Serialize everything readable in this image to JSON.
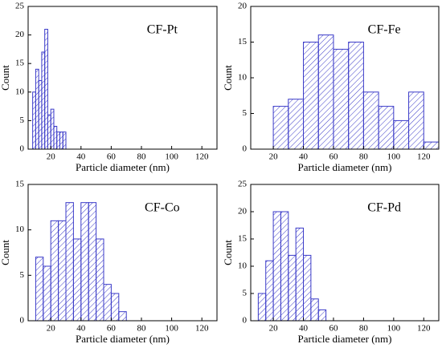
{
  "chart_data": [
    {
      "type": "histogram",
      "annotation": "CF-Pt",
      "xlabel": "Particle diameter (nm)",
      "ylabel": "Count",
      "color": "#3a3ac8",
      "bins": [
        8,
        10,
        12,
        14,
        16,
        18,
        20,
        22,
        24,
        26,
        28,
        30
      ],
      "counts": [
        10,
        14,
        12,
        17,
        21,
        6,
        7,
        4,
        3,
        3,
        3
      ],
      "xlim": [
        5,
        130
      ],
      "xticks": [
        20,
        40,
        60,
        80,
        100,
        120
      ],
      "ylim": [
        0,
        25
      ],
      "yticks": [
        0,
        5,
        10,
        15,
        20,
        25
      ]
    },
    {
      "type": "histogram",
      "annotation": "CF-Fe",
      "xlabel": "Particle diameter (nm)",
      "ylabel": "Count",
      "color": "#3a3ac8",
      "bins": [
        20,
        30,
        40,
        50,
        60,
        70,
        80,
        90,
        100,
        110,
        120,
        130
      ],
      "counts": [
        6,
        7,
        15,
        16,
        14,
        15,
        8,
        6,
        4,
        8,
        1
      ],
      "xlim": [
        5,
        130
      ],
      "xticks": [
        20,
        40,
        60,
        80,
        100,
        120
      ],
      "ylim": [
        0,
        20
      ],
      "yticks": [
        0,
        5,
        10,
        15,
        20
      ]
    },
    {
      "type": "histogram",
      "annotation": "CF-Co",
      "xlabel": "Particle diameter (nm)",
      "ylabel": "Count",
      "color": "#3a3ac8",
      "bins": [
        10,
        15,
        20,
        25,
        30,
        35,
        40,
        45,
        50,
        55,
        60,
        65,
        70
      ],
      "counts": [
        7,
        6,
        11,
        11,
        13,
        9,
        13,
        13,
        9,
        4,
        3,
        1
      ],
      "xlim": [
        5,
        130
      ],
      "xticks": [
        20,
        40,
        60,
        80,
        100,
        120
      ],
      "ylim": [
        0,
        15
      ],
      "yticks": [
        0,
        5,
        10,
        15
      ]
    },
    {
      "type": "histogram",
      "annotation": "CF-Pd",
      "xlabel": "Particle diameter (nm)",
      "ylabel": "Count",
      "color": "#3a3ac8",
      "bins": [
        10,
        15,
        20,
        25,
        30,
        35,
        40,
        45,
        50,
        55
      ],
      "counts": [
        5,
        11,
        20,
        20,
        12,
        17,
        12,
        4,
        2
      ],
      "xlim": [
        5,
        130
      ],
      "xticks": [
        20,
        40,
        60,
        80,
        100,
        120
      ],
      "ylim": [
        0,
        25
      ],
      "yticks": [
        0,
        5,
        10,
        15,
        20,
        25
      ]
    }
  ]
}
